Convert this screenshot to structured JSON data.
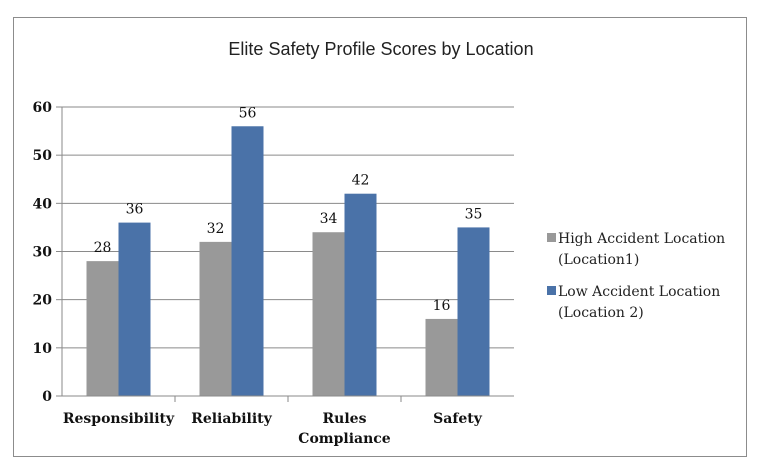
{
  "chart_data": {
    "type": "bar",
    "title": "Elite Safety Profile Scores by Location",
    "categories": [
      [
        "Responsibility"
      ],
      [
        "Reliability"
      ],
      [
        "Rules",
        "Compliance"
      ],
      [
        "Safety"
      ]
    ],
    "series": [
      {
        "name_lines": [
          "High Accident Location",
          "(Location1)"
        ],
        "color": "#999999",
        "values": [
          28,
          32,
          34,
          16
        ],
        "value_labels": [
          "28",
          "32",
          "34",
          "16"
        ]
      },
      {
        "name_lines": [
          "Low Accident Location",
          "(Location 2)"
        ],
        "color": "#4a72a8",
        "values": [
          36,
          56,
          42,
          35
        ],
        "value_labels": [
          "36",
          "56",
          "42",
          "35"
        ]
      }
    ],
    "ylim": [
      0,
      60
    ],
    "yticks": [
      "0",
      "10",
      "20",
      "30",
      "40",
      "50",
      "60"
    ],
    "grid": true,
    "legend": "right"
  }
}
